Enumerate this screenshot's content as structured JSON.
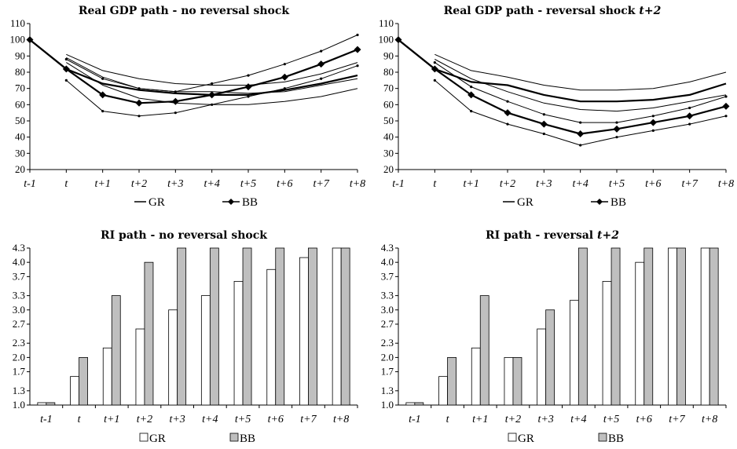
{
  "chart_data": [
    {
      "type": "line",
      "title": "Real GDP path - no reversal shock",
      "title_italic_suffix": "",
      "categories": [
        "t-1",
        "t",
        "t+1",
        "t+2",
        "t+3",
        "t+4",
        "t+5",
        "t+6",
        "t+7",
        "t+8"
      ],
      "ylim": [
        20,
        110
      ],
      "yticks": [
        "20",
        "30",
        "40",
        "50",
        "60",
        "70",
        "80",
        "90",
        "100",
        "110"
      ],
      "legend": {
        "position": "bottom",
        "entries": [
          "GR",
          "BB"
        ]
      },
      "series": [
        {
          "name": "GR",
          "style": "thick-line",
          "values": [
            100,
            82,
            73,
            69,
            67,
            66,
            66,
            69,
            73,
            78
          ]
        },
        {
          "name": "BB",
          "style": "thick-line-diamond",
          "values": [
            100,
            82,
            66,
            61,
            62,
            66,
            71,
            77,
            85,
            94
          ]
        },
        {
          "style": "thin-line",
          "values": [
            null,
            91,
            81,
            76,
            73,
            72,
            72,
            74,
            79,
            86
          ]
        },
        {
          "style": "thin-line",
          "values": [
            null,
            89,
            77,
            70,
            68,
            68,
            67,
            68,
            72,
            76
          ]
        },
        {
          "style": "thin-line",
          "values": [
            null,
            86,
            72,
            64,
            61,
            60,
            60,
            62,
            65,
            70
          ]
        },
        {
          "style": "thin-line-dots",
          "values": [
            null,
            88,
            76,
            70,
            68,
            73,
            78,
            85,
            93,
            103
          ]
        },
        {
          "style": "thin-line-dots",
          "values": [
            null,
            75,
            56,
            53,
            55,
            60,
            65,
            70,
            76,
            84
          ]
        }
      ]
    },
    {
      "type": "line",
      "title": "Real GDP path - reversal shock ",
      "title_italic_suffix": "t+2",
      "categories": [
        "t-1",
        "t",
        "t+1",
        "t+2",
        "t+3",
        "t+4",
        "t+5",
        "t+6",
        "t+7",
        "t+8"
      ],
      "ylim": [
        20,
        110
      ],
      "yticks": [
        "20",
        "30",
        "40",
        "50",
        "60",
        "70",
        "80",
        "90",
        "100",
        "110"
      ],
      "legend": {
        "position": "bottom",
        "entries": [
          "GR",
          "BB"
        ]
      },
      "series": [
        {
          "name": "GR",
          "style": "thick-line",
          "values": [
            100,
            82,
            74,
            72,
            66,
            62,
            62,
            63,
            66,
            73
          ]
        },
        {
          "name": "BB",
          "style": "thick-line-diamond",
          "values": [
            100,
            82,
            66,
            55,
            48,
            42,
            45,
            49,
            53,
            59
          ]
        },
        {
          "style": "thin-line",
          "values": [
            null,
            91,
            81,
            77,
            72,
            69,
            69,
            70,
            74,
            80
          ]
        },
        {
          "style": "thin-line",
          "values": [
            null,
            88,
            76,
            68,
            61,
            57,
            56,
            58,
            62,
            66
          ]
        },
        {
          "style": "thin-line-dots",
          "values": [
            null,
            86,
            71,
            62,
            54,
            49,
            49,
            53,
            58,
            65
          ]
        },
        {
          "style": "thin-line-dots",
          "values": [
            null,
            75,
            56,
            48,
            42,
            35,
            40,
            44,
            48,
            53
          ]
        }
      ]
    },
    {
      "type": "bar",
      "title": "RI path - no reversal shock",
      "title_italic_suffix": "",
      "categories": [
        "t-1",
        "t",
        "t+1",
        "t+2",
        "t+3",
        "t+4",
        "t+5",
        "t+6",
        "t+7",
        "t+8"
      ],
      "ylim": [
        1.0,
        4.3
      ],
      "yticks": [
        "1.0",
        "1.3",
        "1.7",
        "2.0",
        "2.3",
        "2.7",
        "3.0",
        "3.3",
        "3.7",
        "4.0",
        "4.3"
      ],
      "legend": {
        "position": "bottom",
        "entries": [
          "GR",
          "BB"
        ]
      },
      "series": [
        {
          "name": "GR",
          "color": "#ffffff",
          "values": [
            1.05,
            1.6,
            2.2,
            2.6,
            3.0,
            3.3,
            3.6,
            3.85,
            4.1,
            4.3
          ]
        },
        {
          "name": "BB",
          "color": "#bfbfbf",
          "values": [
            1.05,
            2.0,
            3.3,
            4.0,
            4.3,
            4.3,
            4.3,
            4.3,
            4.3,
            4.3
          ]
        }
      ]
    },
    {
      "type": "bar",
      "title": "RI path - reversal ",
      "title_italic_suffix": "t+2",
      "categories": [
        "t-1",
        "t",
        "t+1",
        "t+2",
        "t+3",
        "t+4",
        "t+5",
        "t+6",
        "t+7",
        "t+8"
      ],
      "ylim": [
        1.0,
        4.3
      ],
      "yticks": [
        "1.0",
        "1.3",
        "1.7",
        "2.0",
        "2.3",
        "2.7",
        "3.0",
        "3.3",
        "3.7",
        "4.0",
        "4.3"
      ],
      "legend": {
        "position": "bottom",
        "entries": [
          "GR",
          "BB"
        ]
      },
      "series": [
        {
          "name": "GR",
          "color": "#ffffff",
          "values": [
            1.05,
            1.6,
            2.2,
            2.0,
            2.6,
            3.2,
            3.6,
            4.0,
            4.3,
            4.3
          ]
        },
        {
          "name": "BB",
          "color": "#bfbfbf",
          "values": [
            1.05,
            2.0,
            3.3,
            2.0,
            3.0,
            4.3,
            4.3,
            4.3,
            4.3,
            4.3
          ]
        }
      ]
    }
  ]
}
